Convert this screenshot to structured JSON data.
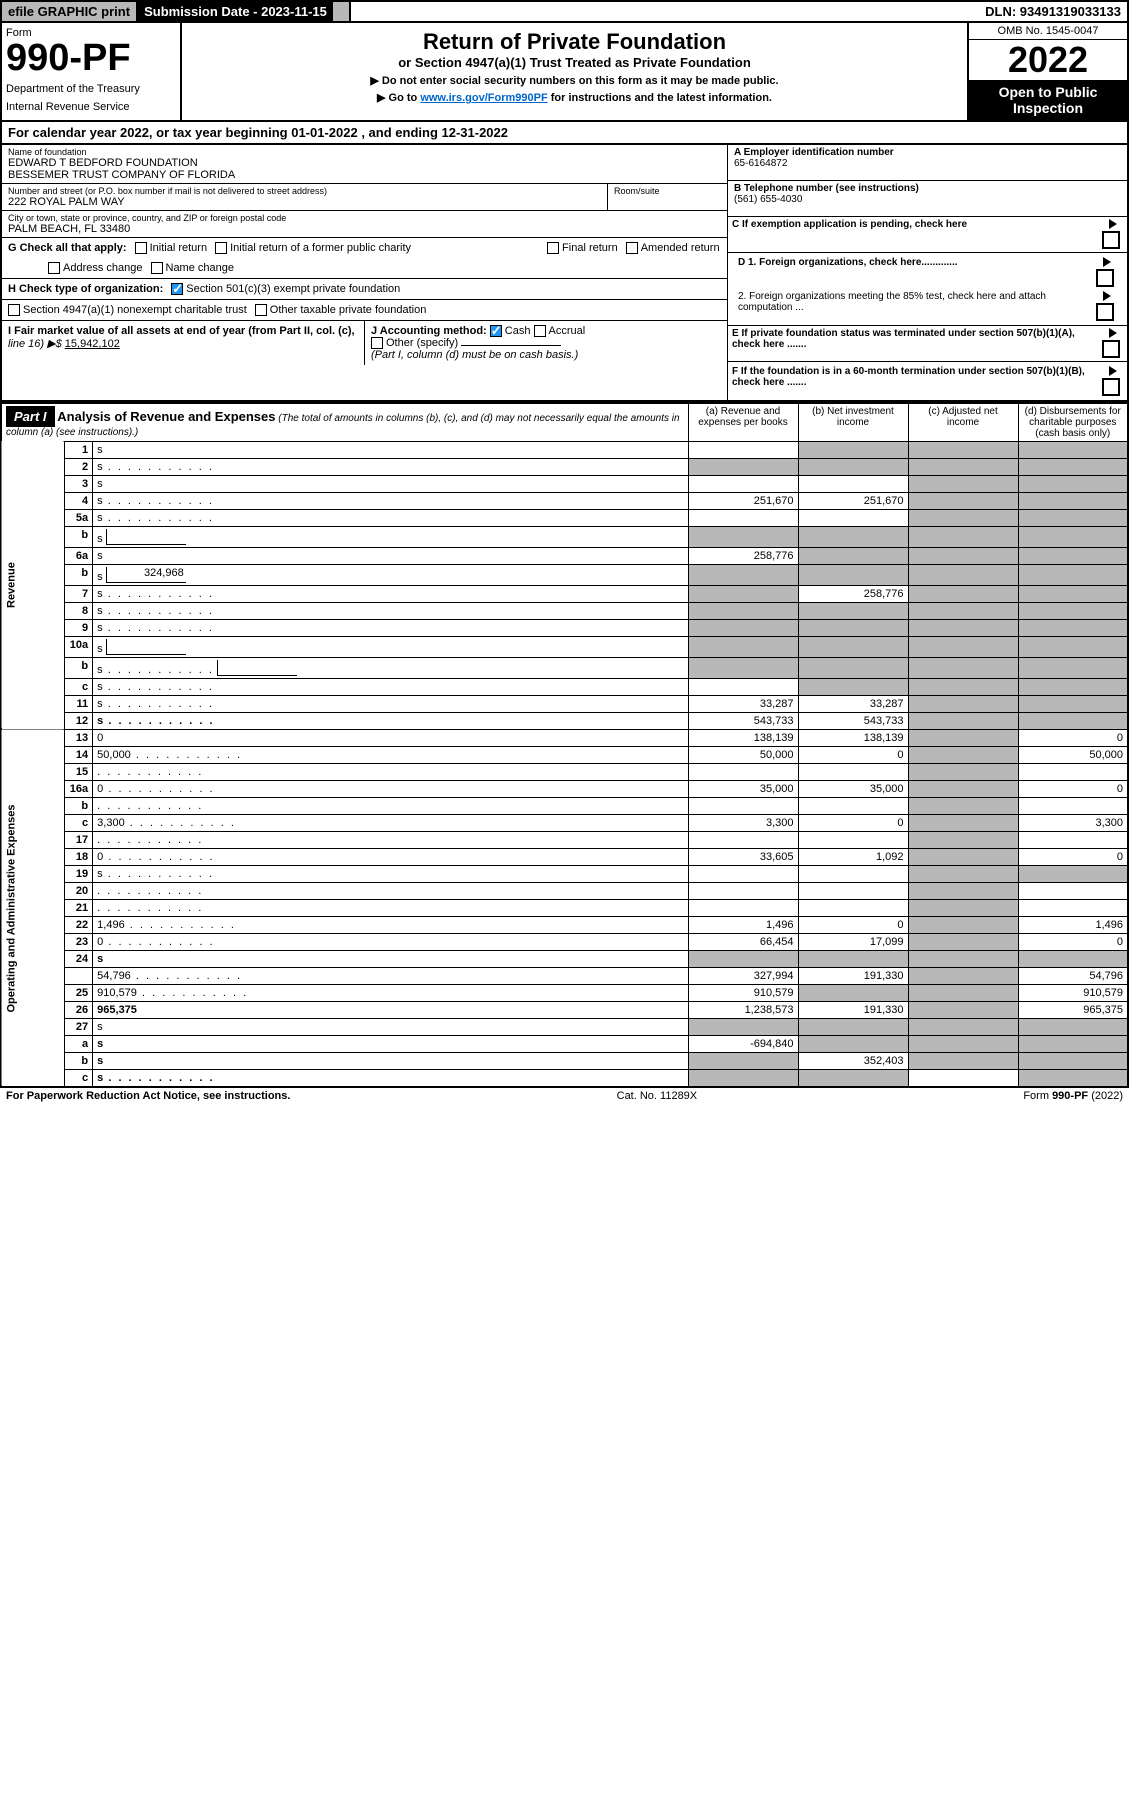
{
  "top": {
    "efile": "efile GRAPHIC print",
    "sub_lbl": "Submission Date - 2023-11-15",
    "dln": "DLN: 93491319033133"
  },
  "header": {
    "form_lbl": "Form",
    "form_no": "990-PF",
    "dept": "Department of the Treasury",
    "irs": "Internal Revenue Service",
    "title": "Return of Private Foundation",
    "subtitle": "or Section 4947(a)(1) Trust Treated as Private Foundation",
    "note1": "▶ Do not enter social security numbers on this form as it may be made public.",
    "note2_pre": "▶ Go to ",
    "note2_link": "www.irs.gov/Form990PF",
    "note2_post": " for instructions and the latest information.",
    "omb": "OMB No. 1545-0047",
    "year": "2022",
    "open": "Open to Public Inspection"
  },
  "cal_year": "For calendar year 2022, or tax year beginning 01-01-2022                                , and ending 12-31-2022",
  "org": {
    "name_lbl": "Name of foundation",
    "name1": "EDWARD T BEDFORD FOUNDATION",
    "name2": "BESSEMER TRUST COMPANY OF FLORIDA",
    "addr_lbl": "Number and street (or P.O. box number if mail is not delivered to street address)",
    "addr": "222 ROYAL PALM WAY",
    "room_lbl": "Room/suite",
    "city_lbl": "City or town, state or province, country, and ZIP or foreign postal code",
    "city": "PALM BEACH, FL  33480",
    "a_lbl": "A Employer identification number",
    "a_val": "65-6164872",
    "b_lbl": "B Telephone number (see instructions)",
    "b_val": "(561) 655-4030",
    "c_lbl": "C If exemption application is pending, check here",
    "d1": "D 1. Foreign organizations, check here.............",
    "d2": "2. Foreign organizations meeting the 85% test, check here and attach computation ...",
    "e": "E If private foundation status was terminated under section 507(b)(1)(A), check here .......",
    "f": "F If the foundation is in a 60-month termination under section 507(b)(1)(B), check here .......",
    "g": "G Check all that apply:",
    "g_opts": [
      "Initial return",
      "Initial return of a former public charity",
      "Final return",
      "Amended return",
      "Address change",
      "Name change"
    ],
    "h": "H Check type of organization:",
    "h1": "Section 501(c)(3) exempt private foundation",
    "h2": "Section 4947(a)(1) nonexempt charitable trust",
    "h3": "Other taxable private foundation",
    "i1": "I Fair market value of all assets at end of year (from Part II, col. (c),",
    "i2": "line 16) ▶$ ",
    "i_val": "15,942,102",
    "j": "J Accounting method:",
    "j1": "Cash",
    "j2": "Accrual",
    "j3": "Other (specify)",
    "j_note": "(Part I, column (d) must be on cash basis.)"
  },
  "part1": {
    "label": "Part I",
    "title": "Analysis of Revenue and Expenses",
    "title_note": "(The total of amounts in columns (b), (c), and (d) may not necessarily equal the amounts in column (a) (see instructions).)",
    "cols": {
      "a": "(a) Revenue and expenses per books",
      "b": "(b) Net investment income",
      "c": "(c) Adjusted net income",
      "d": "(d) Disbursements for charitable purposes (cash basis only)"
    }
  },
  "side_rev": "Revenue",
  "side_exp": "Operating and Administrative Expenses",
  "rows": [
    {
      "n": "1",
      "d": "s",
      "a": "",
      "b": "s",
      "c": "s"
    },
    {
      "n": "2",
      "d": "s",
      "dots": true,
      "a": "s",
      "b": "s",
      "c": "s",
      "bold_not": true
    },
    {
      "n": "3",
      "d": "s",
      "a": "",
      "b": "",
      "c": "s"
    },
    {
      "n": "4",
      "d": "s",
      "dots": true,
      "a": "251,670",
      "b": "251,670",
      "c": "s"
    },
    {
      "n": "5a",
      "d": "s",
      "dots": true,
      "a": "",
      "b": "",
      "c": "s"
    },
    {
      "n": "b",
      "d": "s",
      "box": true,
      "a": "s",
      "b": "s",
      "c": "s"
    },
    {
      "n": "6a",
      "d": "s",
      "a": "258,776",
      "b": "s",
      "c": "s"
    },
    {
      "n": "b",
      "d": "s",
      "box": true,
      "box_val": "324,968",
      "a": "s",
      "b": "s",
      "c": "s"
    },
    {
      "n": "7",
      "d": "s",
      "dots": true,
      "a": "s",
      "b": "258,776",
      "c": "s"
    },
    {
      "n": "8",
      "d": "s",
      "dots": true,
      "a": "s",
      "b": "s",
      "c": "s"
    },
    {
      "n": "9",
      "d": "s",
      "dots": true,
      "a": "s",
      "b": "s",
      "c": "s"
    },
    {
      "n": "10a",
      "d": "s",
      "box": true,
      "a": "s",
      "b": "s",
      "c": "s"
    },
    {
      "n": "b",
      "d": "s",
      "dots": true,
      "box": true,
      "a": "s",
      "b": "s",
      "c": "s"
    },
    {
      "n": "c",
      "d": "s",
      "dots": true,
      "a": "",
      "b": "s",
      "c": "s"
    },
    {
      "n": "11",
      "d": "s",
      "dots": true,
      "a": "33,287",
      "b": "33,287",
      "c": "s"
    },
    {
      "n": "12",
      "d": "s",
      "dots": true,
      "bold": true,
      "a": "543,733",
      "b": "543,733",
      "c": "s"
    }
  ],
  "exp_rows": [
    {
      "n": "13",
      "d": "0",
      "a": "138,139",
      "b": "138,139",
      "c": "s"
    },
    {
      "n": "14",
      "d": "50,000",
      "dots": true,
      "a": "50,000",
      "b": "0",
      "c": "s"
    },
    {
      "n": "15",
      "d": "",
      "dots": true,
      "a": "",
      "b": "",
      "c": "s"
    },
    {
      "n": "16a",
      "d": "0",
      "dots": true,
      "a": "35,000",
      "b": "35,000",
      "c": "s"
    },
    {
      "n": "b",
      "d": "",
      "dots": true,
      "a": "",
      "b": "",
      "c": "s"
    },
    {
      "n": "c",
      "d": "3,300",
      "dots": true,
      "a": "3,300",
      "b": "0",
      "c": "s"
    },
    {
      "n": "17",
      "d": "",
      "dots": true,
      "a": "",
      "b": "",
      "c": "s"
    },
    {
      "n": "18",
      "d": "0",
      "dots": true,
      "a": "33,605",
      "b": "1,092",
      "c": "s"
    },
    {
      "n": "19",
      "d": "s",
      "dots": true,
      "a": "",
      "b": "",
      "c": "s"
    },
    {
      "n": "20",
      "d": "",
      "dots": true,
      "a": "",
      "b": "",
      "c": "s"
    },
    {
      "n": "21",
      "d": "",
      "dots": true,
      "a": "",
      "b": "",
      "c": "s"
    },
    {
      "n": "22",
      "d": "1,496",
      "dots": true,
      "a": "1,496",
      "b": "0",
      "c": "s"
    },
    {
      "n": "23",
      "d": "0",
      "dots": true,
      "a": "66,454",
      "b": "17,099",
      "c": "s"
    },
    {
      "n": "24",
      "d": "s",
      "bold": true,
      "a": "s",
      "b": "s",
      "c": "s"
    },
    {
      "n": "",
      "d": "54,796",
      "dots": true,
      "a": "327,994",
      "b": "191,330",
      "c": "s"
    },
    {
      "n": "25",
      "d": "910,579",
      "dots": true,
      "a": "910,579",
      "b": "s",
      "c": "s"
    },
    {
      "n": "26",
      "d": "965,375",
      "bold": true,
      "a": "1,238,573",
      "b": "191,330",
      "c": "s"
    },
    {
      "n": "27",
      "d": "s",
      "a": "s",
      "b": "s",
      "c": "s"
    },
    {
      "n": "a",
      "d": "s",
      "bold": true,
      "a": "-694,840",
      "b": "s",
      "c": "s"
    },
    {
      "n": "b",
      "d": "s",
      "bold": true,
      "a": "s",
      "b": "352,403",
      "c": "s"
    },
    {
      "n": "c",
      "d": "s",
      "bold": true,
      "dots": true,
      "a": "s",
      "b": "s",
      "c": ""
    }
  ],
  "footer": {
    "left": "For Paperwork Reduction Act Notice, see instructions.",
    "mid": "Cat. No. 11289X",
    "right": "Form 990-PF (2022)"
  }
}
